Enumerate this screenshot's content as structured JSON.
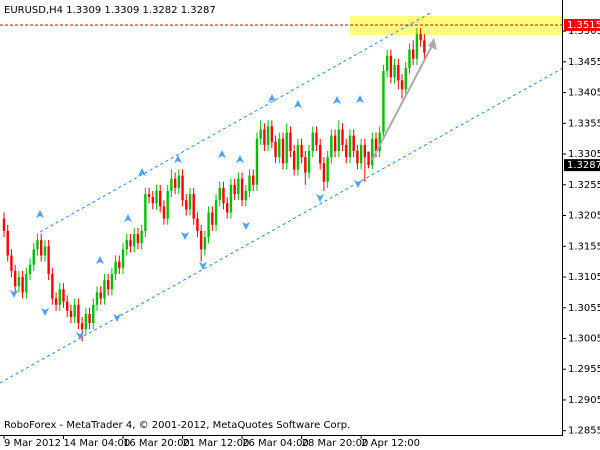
{
  "chart_data": {
    "type": "candlestick",
    "title": "EURUSD,H4  1.3309 1.3309 1.3282 1.3287",
    "footer": "RoboForex - MetaTrader 4, © 2001-2012, MetaQuotes Software Corp.",
    "up_color": "#00c000",
    "down_color": "#ff0000",
    "ylim": [
      1.2848,
      1.3554
    ],
    "yticks": [
      1.2855,
      1.2905,
      1.2955,
      1.3005,
      1.3055,
      1.3105,
      1.3155,
      1.3205,
      1.3255,
      1.3305,
      1.3355,
      1.3405,
      1.3455,
      1.3505
    ],
    "price_levels": [
      {
        "value": 1.3515,
        "color": "#ff0000"
      },
      {
        "value": 1.3287,
        "color": "#000000"
      }
    ],
    "categories": [
      "9 Mar 2012",
      null,
      null,
      null,
      null,
      null,
      null,
      null,
      null,
      null,
      null,
      null,
      null,
      null,
      null,
      null,
      "14 Mar 04:00",
      null,
      null,
      null,
      null,
      null,
      null,
      null,
      null,
      null,
      null,
      null,
      null,
      null,
      null,
      null,
      "16 Mar 20:00",
      null,
      null,
      null,
      null,
      null,
      null,
      null,
      null,
      null,
      null,
      null,
      null,
      null,
      null,
      null,
      "21 Mar 12:00",
      null,
      null,
      null,
      null,
      null,
      null,
      null,
      null,
      null,
      null,
      null,
      null,
      null,
      null,
      null,
      "26 Mar 04:00",
      null,
      null,
      null,
      null,
      null,
      null,
      null,
      null,
      null,
      null,
      null,
      null,
      null,
      null,
      null,
      "28 Mar 20:00",
      null,
      null,
      null,
      null,
      null,
      null,
      null,
      null,
      null,
      null,
      null,
      null,
      null,
      null,
      null,
      "2 Apr 12:00",
      null,
      null,
      null,
      null,
      null,
      null,
      null,
      null,
      null,
      null,
      null,
      null,
      null,
      null,
      null,
      null,
      null
    ],
    "open": [
      1.32,
      1.318,
      1.314,
      1.3115,
      1.309,
      1.3105,
      1.308,
      1.311,
      1.3125,
      1.315,
      1.3165,
      1.314,
      1.3155,
      1.311,
      1.307,
      1.306,
      1.3085,
      1.3065,
      1.305,
      1.304,
      1.306,
      1.303,
      1.302,
      1.3045,
      1.303,
      1.306,
      1.308,
      1.307,
      1.31,
      1.3085,
      1.311,
      1.313,
      1.312,
      1.315,
      1.3165,
      1.3155,
      1.3175,
      1.316,
      1.318,
      1.324,
      1.3235,
      1.3225,
      1.3245,
      1.322,
      1.32,
      1.3245,
      1.3265,
      1.325,
      1.327,
      1.323,
      1.3215,
      1.324,
      1.32,
      1.318,
      1.315,
      1.317,
      1.321,
      1.319,
      1.323,
      1.325,
      1.3225,
      1.321,
      1.3255,
      1.324,
      1.3265,
      1.323,
      1.3245,
      1.327,
      1.3255,
      1.333,
      1.3345,
      1.332,
      1.335,
      1.3325,
      1.33,
      1.333,
      1.329,
      1.334,
      1.331,
      1.328,
      1.332,
      1.33,
      1.3275,
      1.331,
      1.334,
      1.332,
      1.329,
      1.326,
      1.33,
      1.3335,
      1.331,
      1.3345,
      1.332,
      1.33,
      1.3335,
      1.331,
      1.329,
      1.332,
      1.3309,
      1.3287,
      1.333,
      1.331,
      1.334,
      1.344,
      1.3465,
      1.343,
      1.345,
      1.3425,
      1.341,
      1.3445,
      1.3475,
      1.346,
      1.35,
      1.349
    ],
    "high": [
      1.321,
      1.319,
      1.315,
      1.3125,
      1.3115,
      1.3115,
      1.312,
      1.3135,
      1.316,
      1.3175,
      1.3175,
      1.3165,
      1.3165,
      1.312,
      1.308,
      1.3095,
      1.3095,
      1.3075,
      1.306,
      1.307,
      1.307,
      1.304,
      1.3055,
      1.3055,
      1.307,
      1.309,
      1.309,
      1.311,
      1.311,
      1.312,
      1.314,
      1.314,
      1.316,
      1.3175,
      1.3175,
      1.3185,
      1.3185,
      1.319,
      1.325,
      1.325,
      1.3245,
      1.3255,
      1.3255,
      1.323,
      1.3255,
      1.328,
      1.3275,
      1.328,
      1.328,
      1.324,
      1.325,
      1.325,
      1.321,
      1.319,
      1.318,
      1.322,
      1.322,
      1.324,
      1.326,
      1.326,
      1.3235,
      1.3265,
      1.3265,
      1.3275,
      1.3275,
      1.3255,
      1.328,
      1.328,
      1.334,
      1.336,
      1.3355,
      1.336,
      1.336,
      1.3335,
      1.334,
      1.334,
      1.3355,
      1.335,
      1.332,
      1.333,
      1.333,
      1.331,
      1.332,
      1.335,
      1.335,
      1.333,
      1.33,
      1.331,
      1.3345,
      1.3345,
      1.336,
      1.3355,
      1.333,
      1.3345,
      1.3345,
      1.332,
      1.333,
      1.333,
      1.3309,
      1.334,
      1.334,
      1.335,
      1.345,
      1.3475,
      1.3475,
      1.346,
      1.346,
      1.3435,
      1.3455,
      1.3485,
      1.349,
      1.351,
      1.351,
      1.35
    ],
    "low": [
      1.317,
      1.313,
      1.3105,
      1.308,
      1.308,
      1.307,
      1.307,
      1.31,
      1.3115,
      1.314,
      1.313,
      1.313,
      1.31,
      1.306,
      1.305,
      1.305,
      1.3055,
      1.304,
      1.303,
      1.303,
      1.302,
      1.3,
      1.301,
      1.302,
      1.302,
      1.305,
      1.306,
      1.306,
      1.3075,
      1.3075,
      1.31,
      1.311,
      1.311,
      1.314,
      1.3145,
      1.3145,
      1.315,
      1.315,
      1.317,
      1.3225,
      1.3215,
      1.3215,
      1.321,
      1.319,
      1.319,
      1.3235,
      1.324,
      1.324,
      1.322,
      1.3205,
      1.3205,
      1.319,
      1.317,
      1.313,
      1.314,
      1.316,
      1.318,
      1.318,
      1.322,
      1.3215,
      1.32,
      1.32,
      1.323,
      1.323,
      1.322,
      1.322,
      1.3235,
      1.3245,
      1.3245,
      1.332,
      1.331,
      1.331,
      1.3315,
      1.329,
      1.329,
      1.328,
      1.328,
      1.33,
      1.327,
      1.327,
      1.329,
      1.3255,
      1.3265,
      1.33,
      1.331,
      1.328,
      1.3245,
      1.325,
      1.329,
      1.33,
      1.33,
      1.331,
      1.329,
      1.329,
      1.33,
      1.328,
      1.328,
      1.326,
      1.3282,
      1.328,
      1.33,
      1.33,
      1.333,
      1.343,
      1.342,
      1.342,
      1.341,
      1.3395,
      1.34,
      1.3435,
      1.345,
      1.345,
      1.348,
      1.346
    ],
    "close": [
      1.318,
      1.314,
      1.3115,
      1.309,
      1.3105,
      1.308,
      1.311,
      1.3125,
      1.315,
      1.3165,
      1.314,
      1.3155,
      1.311,
      1.307,
      1.306,
      1.3085,
      1.3065,
      1.305,
      1.304,
      1.306,
      1.303,
      1.302,
      1.3045,
      1.303,
      1.306,
      1.308,
      1.307,
      1.31,
      1.3085,
      1.311,
      1.313,
      1.312,
      1.315,
      1.3165,
      1.3155,
      1.3175,
      1.316,
      1.318,
      1.324,
      1.3235,
      1.3225,
      1.3245,
      1.322,
      1.32,
      1.3245,
      1.3265,
      1.325,
      1.327,
      1.323,
      1.3215,
      1.324,
      1.32,
      1.318,
      1.315,
      1.317,
      1.321,
      1.319,
      1.323,
      1.325,
      1.3225,
      1.321,
      1.3255,
      1.324,
      1.3265,
      1.323,
      1.3245,
      1.327,
      1.3255,
      1.333,
      1.3345,
      1.332,
      1.335,
      1.3325,
      1.33,
      1.333,
      1.329,
      1.334,
      1.331,
      1.328,
      1.332,
      1.33,
      1.3275,
      1.331,
      1.334,
      1.332,
      1.329,
      1.326,
      1.33,
      1.3335,
      1.331,
      1.3345,
      1.332,
      1.33,
      1.3335,
      1.331,
      1.329,
      1.332,
      1.33,
      1.3287,
      1.333,
      1.331,
      1.334,
      1.344,
      1.3465,
      1.343,
      1.345,
      1.3425,
      1.341,
      1.3445,
      1.3475,
      1.346,
      1.35,
      1.349,
      1.347
    ]
  }
}
